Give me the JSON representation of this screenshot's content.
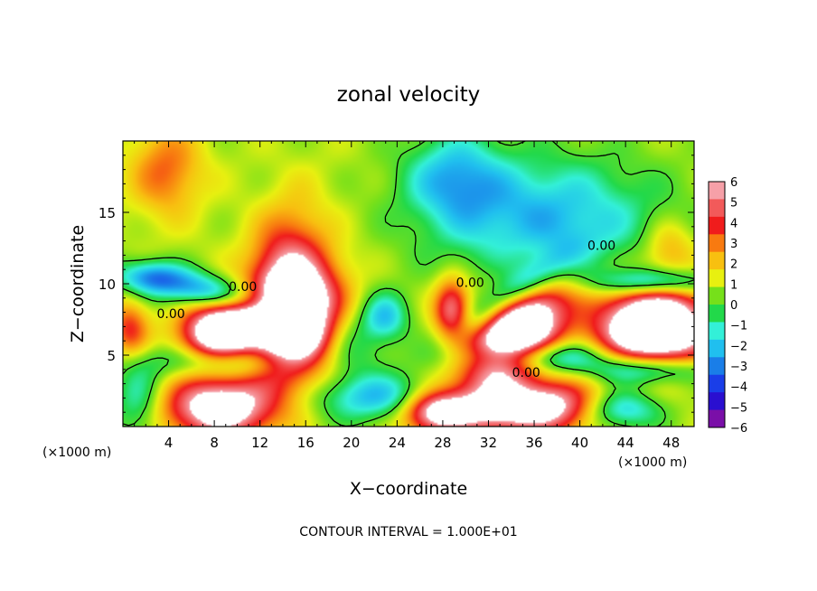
{
  "chart_data": {
    "type": "heatmap",
    "title": "zonal velocity",
    "xlabel": "X−coordinate",
    "ylabel": "Z−coordinate",
    "x_unit_label_left": "(×1000 m)",
    "x_unit_label_right": "(×1000 m)",
    "xlim": [
      0,
      50
    ],
    "ylim": [
      0,
      20
    ],
    "xticks": [
      4,
      8,
      12,
      16,
      20,
      24,
      28,
      32,
      36,
      40,
      44,
      48
    ],
    "xtick_labels": [
      "4",
      "8",
      "12",
      "16",
      "20",
      "24",
      "28",
      "32",
      "36",
      "40",
      "44",
      "48"
    ],
    "yticks": [
      5,
      10,
      15
    ],
    "ytick_labels": [
      "5",
      "10",
      "15"
    ],
    "colorbar": {
      "min": -6,
      "max": 6,
      "ticks": [
        6,
        5,
        4,
        3,
        2,
        1,
        0,
        -1,
        -2,
        -3,
        -4,
        -5,
        -6
      ],
      "tick_labels": [
        "6",
        "5",
        "4",
        "3",
        "2",
        "1",
        "0",
        "−1",
        "−2",
        "−3",
        "−4",
        "−5",
        "−6"
      ],
      "colors": [
        "#7a0fa8",
        "#2a0fd0",
        "#1a3ee8",
        "#1a7ee8",
        "#20bfef",
        "#33f0d8",
        "#22d94a",
        "#76e01a",
        "#e8f010",
        "#f8c010",
        "#f87a10",
        "#f01c1c",
        "#f25a5a",
        "#f6a0a8"
      ]
    },
    "contour_labels": [
      {
        "text": "0.00",
        "x": 4.2,
        "y": 7.9
      },
      {
        "text": "0.00",
        "x": 10.5,
        "y": 9.8
      },
      {
        "text": "0.00",
        "x": 30.4,
        "y": 10.1
      },
      {
        "text": "0.00",
        "x": 35.3,
        "y": 3.8
      },
      {
        "text": "0.00",
        "x": 41.9,
        "y": 12.7
      }
    ],
    "features": [
      {
        "v": 10,
        "x": 15.2,
        "y": 7.4,
        "sx": 2.4,
        "sy": 2.9,
        "r": -0.55
      },
      {
        "v": 3.2,
        "x": 13.8,
        "y": 11.2,
        "sx": 2.1,
        "sy": 3.4,
        "r": -0.4
      },
      {
        "v": 9,
        "x": 8.8,
        "y": 6.7,
        "sx": 2.5,
        "sy": 1.6,
        "r": 0.2
      },
      {
        "v": 7,
        "x": 8.5,
        "y": 1.3,
        "sx": 3.3,
        "sy": 1.5,
        "r": 0
      },
      {
        "v": 10,
        "x": 34.3,
        "y": 6.6,
        "sx": 3.3,
        "sy": 2.0,
        "r": 0.6
      },
      {
        "v": 6,
        "x": 34.0,
        "y": 1.2,
        "sx": 5.0,
        "sy": 1.3,
        "r": 0
      },
      {
        "v": 10,
        "x": 46.5,
        "y": 6.9,
        "sx": 3.4,
        "sy": 2.0,
        "r": 0
      },
      {
        "v": 5,
        "x": 27.3,
        "y": 1.0,
        "sx": 2.0,
        "sy": 1.0,
        "r": 0
      },
      {
        "v": 4.8,
        "x": 28.8,
        "y": 8.2,
        "sx": 1.1,
        "sy": 1.5,
        "r": 0
      },
      {
        "v": 3.2,
        "x": 0.6,
        "y": 6.8,
        "sx": 1.2,
        "sy": 1.4,
        "r": 0
      },
      {
        "v": 2.6,
        "x": 3.8,
        "y": 17.9,
        "sx": 2.2,
        "sy": 2.2,
        "r": 0
      },
      {
        "v": 2.0,
        "x": 47.8,
        "y": 12.5,
        "sx": 1.6,
        "sy": 1.4,
        "r": 0
      },
      {
        "v": 2.0,
        "x": 38.0,
        "y": 1.8,
        "sx": 2.5,
        "sy": 1.2,
        "r": 0
      },
      {
        "v": -4.2,
        "x": 8.3,
        "y": 9.3,
        "sx": 4.8,
        "sy": 0.9,
        "r": -0.15
      },
      {
        "v": -3.6,
        "x": 9.0,
        "y": 4.6,
        "sx": 4.3,
        "sy": 0.9,
        "r": 0
      },
      {
        "v": -3.4,
        "x": 22.5,
        "y": 2.0,
        "sx": 4.0,
        "sy": 1.2,
        "r": 0
      },
      {
        "v": -3.3,
        "x": 37.0,
        "y": 14.6,
        "sx": 7.0,
        "sy": 3.0,
        "r": 0
      },
      {
        "v": -2.8,
        "x": 29.0,
        "y": 17.5,
        "sx": 3.0,
        "sy": 2.2,
        "r": 0
      },
      {
        "v": -4.8,
        "x": 34.0,
        "y": 9.2,
        "sx": 3.7,
        "sy": 1.0,
        "r": 0.5
      },
      {
        "v": -4.5,
        "x": 46.0,
        "y": 4.0,
        "sx": 3.5,
        "sy": 0.8,
        "r": 0
      },
      {
        "v": -4.2,
        "x": 46.5,
        "y": 10.1,
        "sx": 3.5,
        "sy": 0.7,
        "r": 0
      },
      {
        "v": -3.8,
        "x": 36.0,
        "y": 4.9,
        "sx": 4.5,
        "sy": 0.8,
        "r": 0
      },
      {
        "v": -2.8,
        "x": 23.0,
        "y": 7.7,
        "sx": 1.4,
        "sy": 1.2,
        "r": 0
      },
      {
        "v": -2.2,
        "x": 1.3,
        "y": 1.8,
        "sx": 1.5,
        "sy": 2.0,
        "r": 0
      },
      {
        "v": -3.6,
        "x": 43.5,
        "y": 1.2,
        "sx": 2.5,
        "sy": 1.0,
        "r": 0
      },
      {
        "v": -1.6,
        "x": 20.0,
        "y": 5.8,
        "sx": 2.0,
        "sy": 1.6,
        "r": 0
      },
      {
        "v": -2.5,
        "x": 2.5,
        "y": 10.5,
        "sx": 2.0,
        "sy": 0.8,
        "r": 0
      }
    ],
    "footer": "CONTOUR INTERVAL = 1.000E+01"
  }
}
